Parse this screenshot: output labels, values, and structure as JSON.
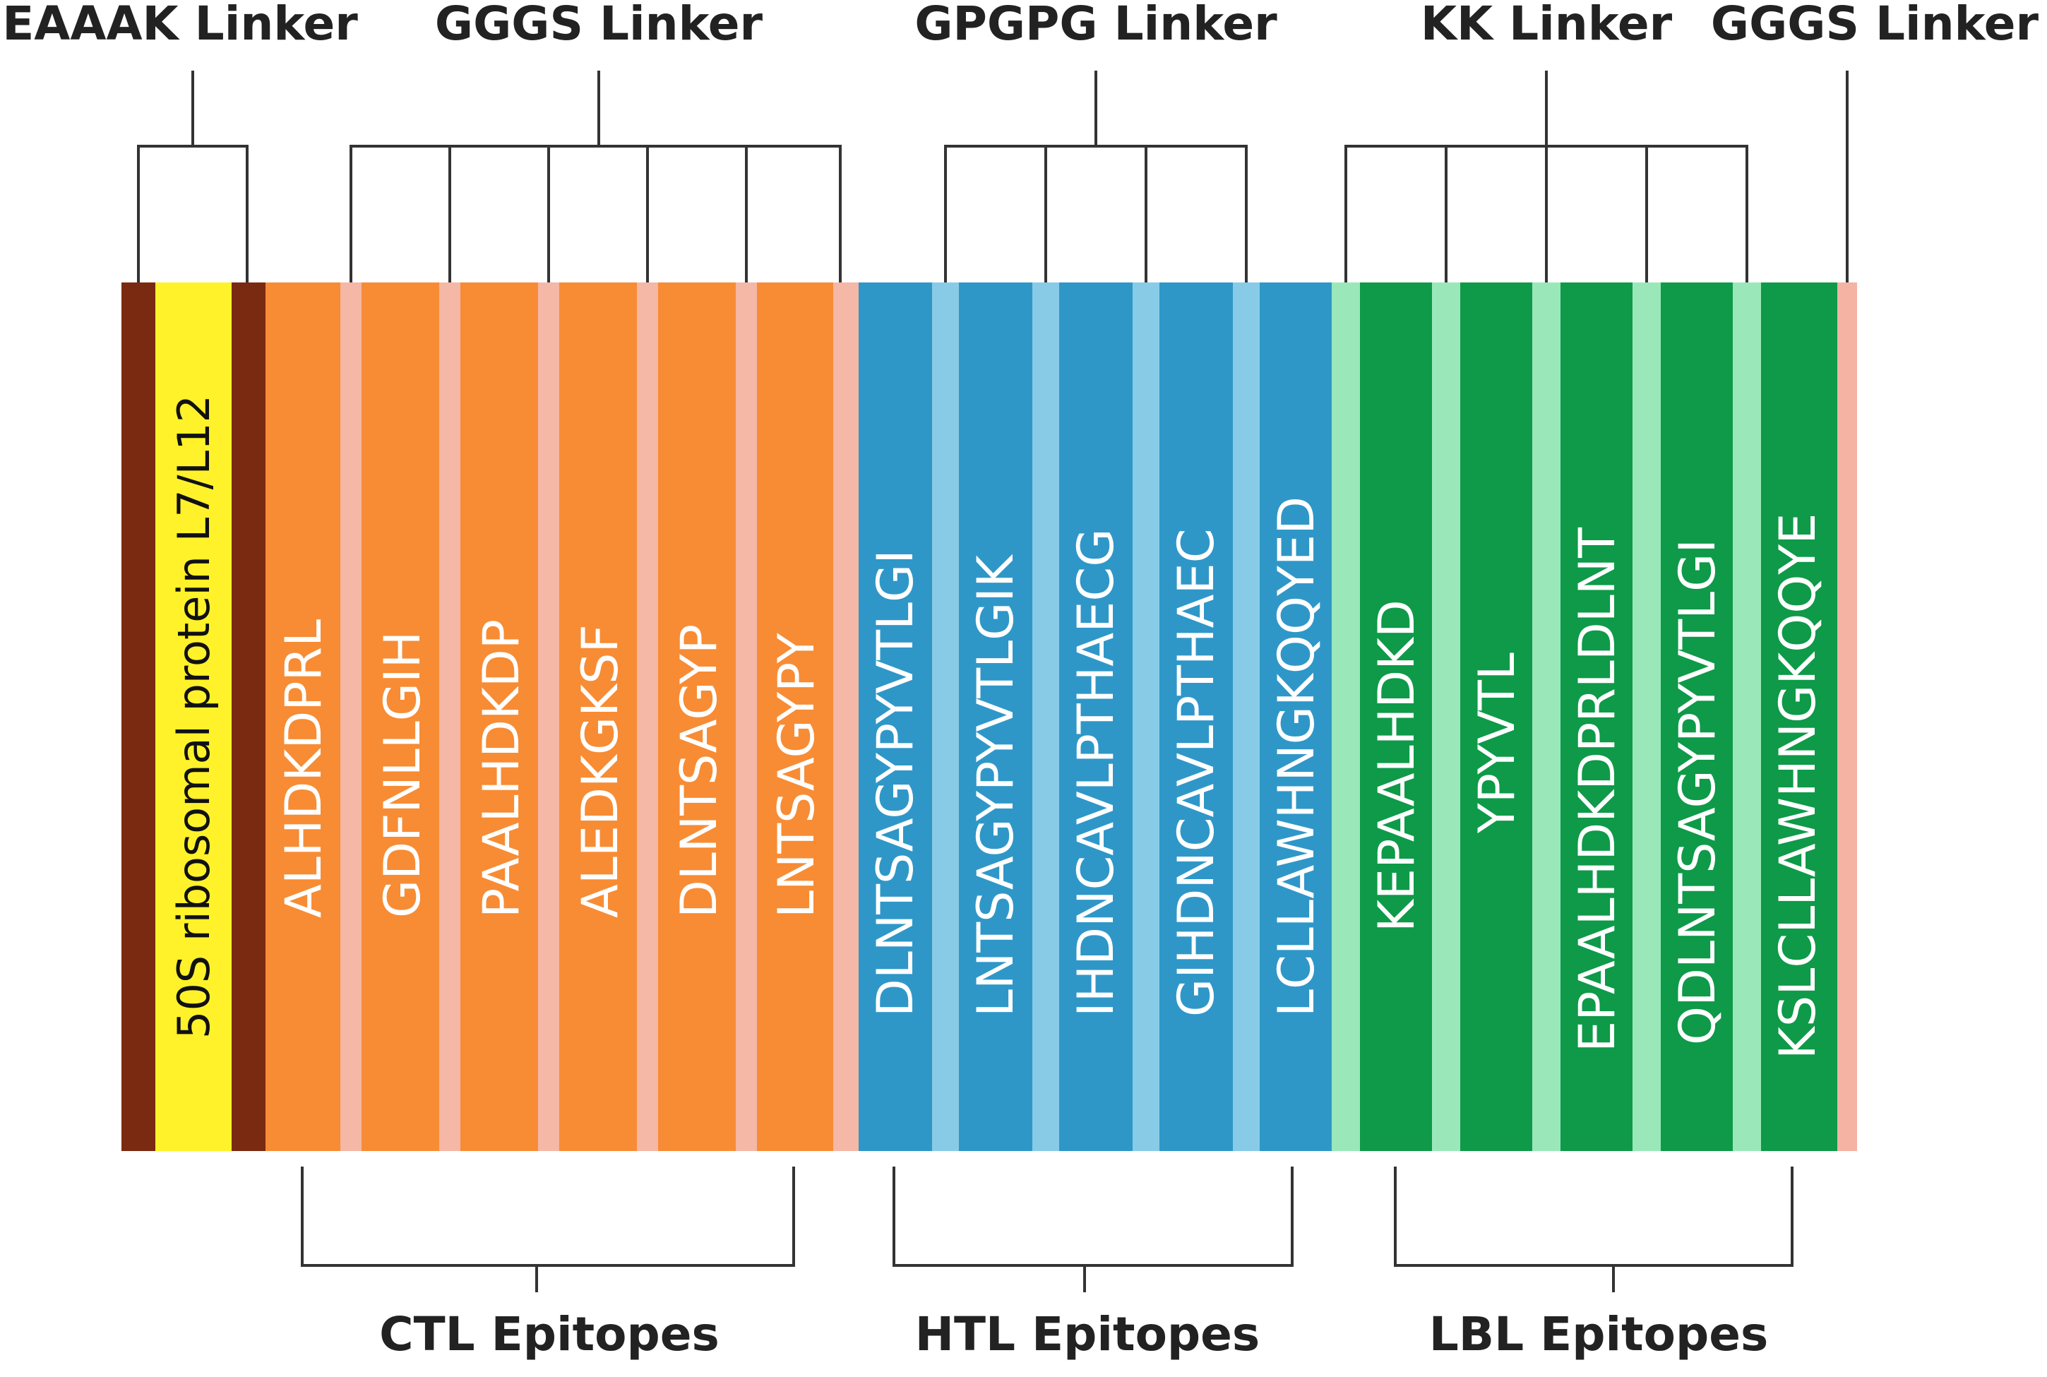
{
  "linker_labels": {
    "eaaak": "EAAAK Linker",
    "ggs_ctl": "GGGS Linker",
    "gpgpg": "GPGPG Linker",
    "kk": "KK Linker",
    "ggs_end": "GGGS Linker"
  },
  "adjuvant": {
    "label": "50S ribosomal protein L7/L12"
  },
  "ctl": {
    "label": "CTL Epitopes",
    "epitopes": [
      "ALHDKDPRL",
      "GDFNLLGIH",
      "PAALHDKDP",
      "ALEDKGKSF",
      "DLNTSAGYP",
      "LNTSAGYPY"
    ]
  },
  "htl": {
    "label": "HTL Epitopes",
    "epitopes": [
      "DLNTSAGYPYVTLGI",
      "LNTSAGYPYVTLGIK",
      "IHDNCAVLPTHAECG",
      "GIHDNCAVLPTHAEC",
      "LCLLAWHNGKQQYED"
    ]
  },
  "lbl": {
    "label": "LBL Epitopes",
    "epitopes": [
      "KEPAALHDKD",
      "YPYVTL",
      "EPAALHDKDPRLDLNT",
      "QDLNTSAGYPYVTLGI",
      "KSLCLLAWHNGKQQYE"
    ]
  },
  "colors": {
    "eaaak": "#7a2a10",
    "adjuvant": "#fff22a",
    "ctl": "#f78c34",
    "ctl_linker": "#f5b7a6",
    "htl": "#2f97c8",
    "htl_linker": "#88cbe6",
    "lbl": "#0e9a48",
    "lbl_linker": "#9ae8b9",
    "end_linker": "#f4b3a3"
  }
}
